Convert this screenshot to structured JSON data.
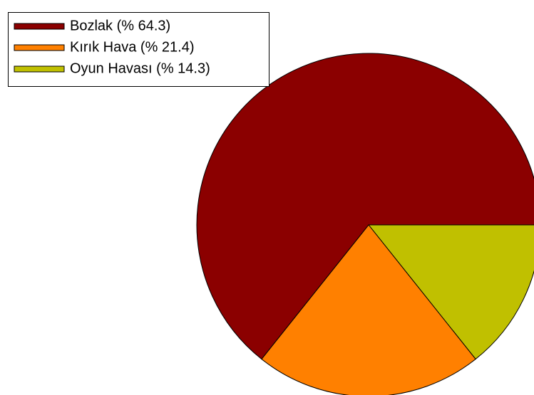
{
  "chart_data": {
    "type": "pie",
    "categories": [
      "Bozlak",
      "Kırık Hava",
      "Oyun Havası"
    ],
    "values": [
      64.3,
      21.4,
      14.3
    ],
    "value_labels": [
      "Bozlak (% 64.3)",
      "Kırık Hava (% 21.4)",
      "Oyun Havası (% 14.3)"
    ],
    "colors": [
      "#8b0000",
      "#ff8000",
      "#c0c000"
    ],
    "legend": "upper left"
  }
}
